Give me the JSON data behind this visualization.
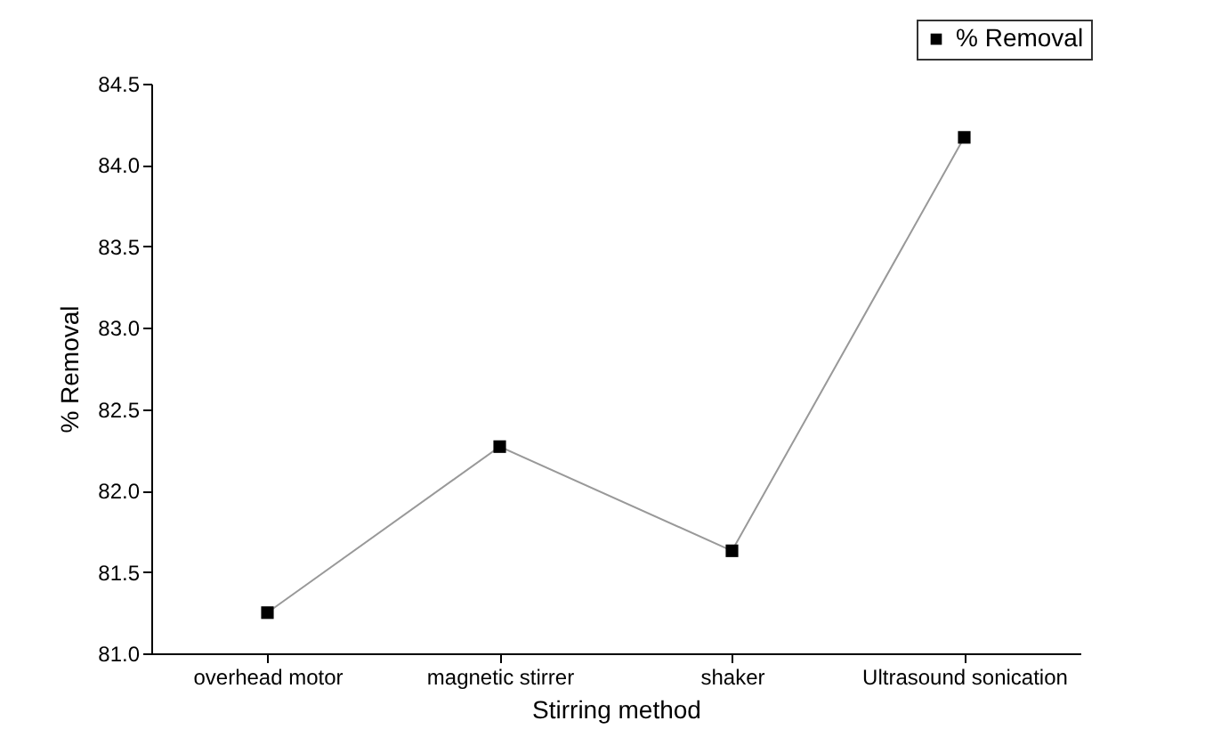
{
  "chart_data": {
    "type": "line",
    "xlabel": "Stirring method",
    "ylabel": "% Removal",
    "categories": [
      "overhead motor",
      "magnetic stirrer",
      "shaker",
      "Ultrasound sonication"
    ],
    "series": [
      {
        "name": "% Removal",
        "color": "#000000",
        "values": [
          81.25,
          82.27,
          81.63,
          84.17
        ]
      }
    ],
    "ylim": [
      81.0,
      84.5
    ],
    "yticks": [
      {
        "value": 81,
        "label": "81.0"
      },
      81.5,
      {
        "value": 82,
        "label": "82.0"
      },
      82.5,
      {
        "value": 83,
        "label": "83.0"
      },
      83.5,
      {
        "value": 84,
        "label": "84.0"
      },
      84.5
    ],
    "grid": false,
    "legend": "top right",
    "marker": "square",
    "line_style": "solid"
  }
}
